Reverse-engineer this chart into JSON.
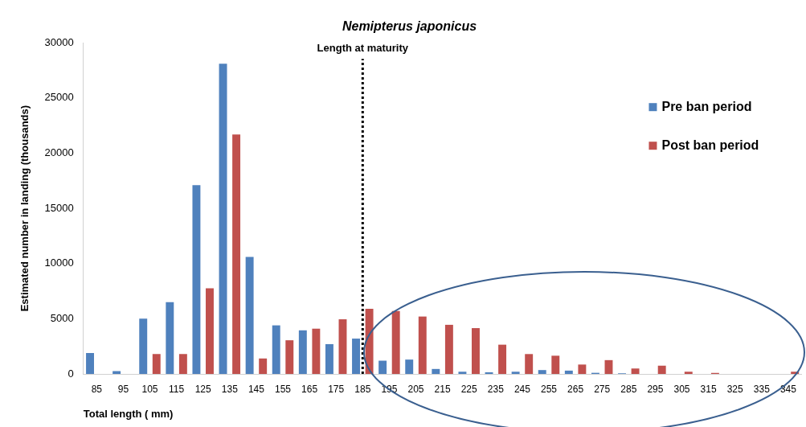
{
  "chart_data": {
    "type": "bar",
    "title": "Nemipterus japonicus",
    "xlabel": "Total length ( mm)",
    "ylabel": "Estimated number in landing (thousands)",
    "categories": [
      "85",
      "95",
      "105",
      "115",
      "125",
      "135",
      "145",
      "155",
      "165",
      "175",
      "185",
      "195",
      "205",
      "215",
      "225",
      "235",
      "245",
      "255",
      "265",
      "275",
      "285",
      "295",
      "305",
      "315",
      "325",
      "335",
      "345"
    ],
    "series": [
      {
        "name": "Pre ban period",
        "color": "#4f81bd",
        "values": [
          1900,
          250,
          5000,
          6500,
          17100,
          28100,
          10600,
          4400,
          3950,
          2700,
          3200,
          1200,
          1300,
          450,
          200,
          150,
          200,
          350,
          300,
          100,
          50,
          0,
          0,
          0,
          0,
          0,
          0
        ]
      },
      {
        "name": "Post ban period",
        "color": "#c0504d",
        "values": [
          0,
          0,
          1800,
          1800,
          7750,
          21700,
          1400,
          3050,
          4100,
          4950,
          5900,
          5700,
          5200,
          4450,
          4150,
          2650,
          1800,
          1650,
          850,
          1250,
          500,
          750,
          200,
          100,
          0,
          0,
          200
        ]
      }
    ],
    "ylim": [
      0,
      30000
    ],
    "yticks": [
      0,
      5000,
      10000,
      15000,
      20000,
      25000,
      30000
    ],
    "grid": false,
    "legend": "right",
    "ref_lines": [
      {
        "axis": "x",
        "value": "185",
        "label": "Length at maturity",
        "color": "#000000",
        "line_style": "dotted"
      }
    ]
  }
}
